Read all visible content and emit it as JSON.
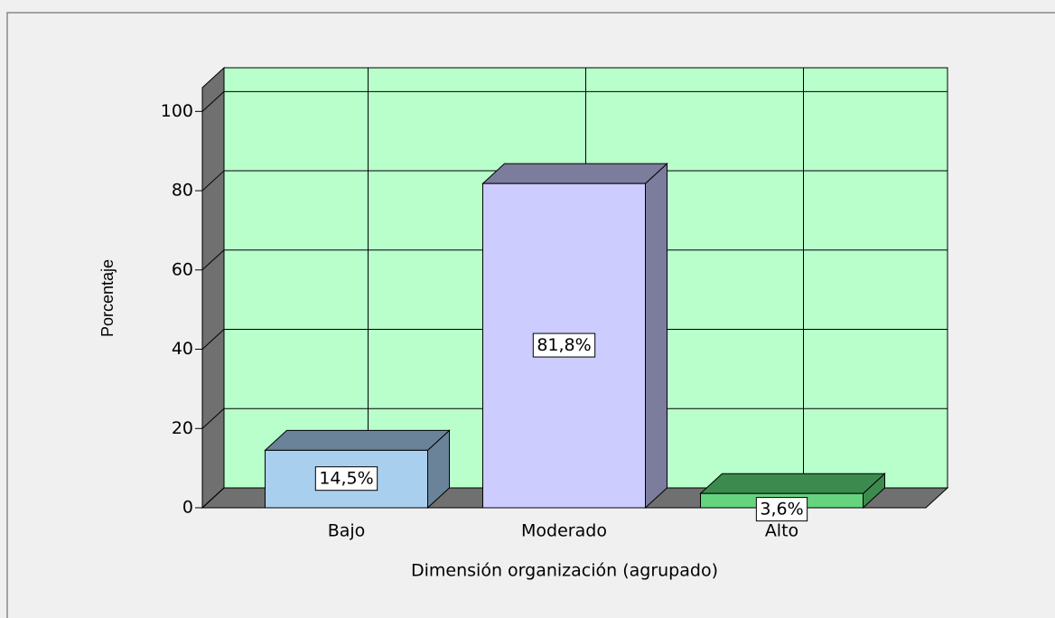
{
  "chart_data": {
    "type": "bar3d",
    "xlabel": "Dimensión organización (agrupado)",
    "ylabel": "Porcentaje",
    "categories": [
      "Bajo",
      "Moderado",
      "Alto"
    ],
    "values": [
      14.5,
      81.8,
      3.6
    ],
    "value_labels": [
      "14,5%",
      "81,8%",
      "3,6%"
    ],
    "colors": [
      "#a9cfee",
      "#ccccff",
      "#66d37e"
    ],
    "side_colors": [
      "#6b8399",
      "#7c7c9c",
      "#3d8a4f"
    ],
    "ylim": [
      0,
      106
    ],
    "yticks": [
      0,
      20,
      40,
      60,
      80,
      100
    ],
    "grid": true,
    "wall_color": "#b8ffcc"
  }
}
